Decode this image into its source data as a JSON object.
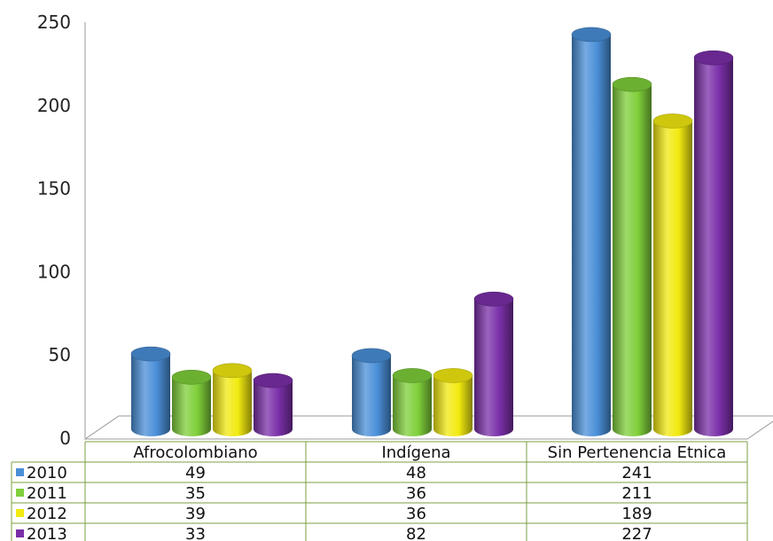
{
  "chart_data": {
    "type": "bar",
    "categories": [
      "Afrocolombiano",
      "Indígena",
      "Sin Pertenencia Etnica"
    ],
    "series": [
      {
        "name": "2010",
        "color": "#4a8fd8",
        "values": [
          49,
          48,
          241
        ]
      },
      {
        "name": "2011",
        "color": "#7fcf3a",
        "values": [
          35,
          36,
          211
        ]
      },
      {
        "name": "2012",
        "color": "#f2ea10",
        "values": [
          39,
          36,
          189
        ]
      },
      {
        "name": "2013",
        "color": "#7a2fa8",
        "values": [
          33,
          82,
          227
        ]
      }
    ],
    "ylim": [
      0,
      250
    ],
    "yticks": [
      0,
      50,
      100,
      150,
      200,
      250
    ],
    "legend": "data-table-left",
    "grid": false,
    "title": "",
    "xlabel": "",
    "ylabel": ""
  }
}
